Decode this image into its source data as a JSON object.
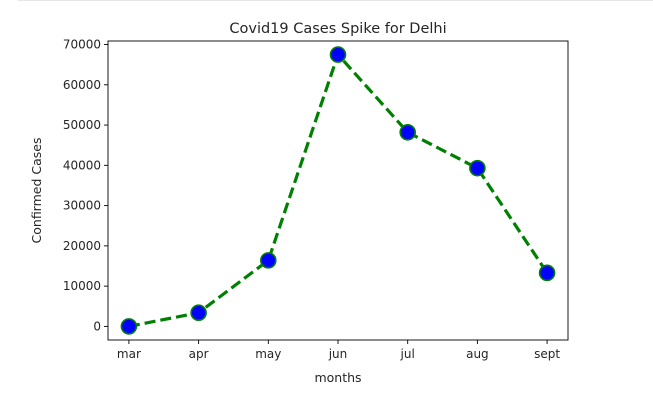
{
  "chart_data": {
    "type": "line",
    "title": "Covid19 Cases Spike for Delhi",
    "xlabel": "months",
    "ylabel": "Confirmed Cases",
    "categories": [
      "mar",
      "apr",
      "may",
      "jun",
      "jul",
      "aug",
      "sept"
    ],
    "series": [
      {
        "values": [
          0,
          3400,
          16400,
          67500,
          48200,
          39300,
          13300
        ]
      }
    ],
    "ylim": [
      -3375,
      70875
    ],
    "yticks": [
      0,
      10000,
      20000,
      30000,
      40000,
      50000,
      60000,
      70000
    ],
    "ytick_labels": [
      "0",
      "10000",
      "20000",
      "30000",
      "40000",
      "50000",
      "60000",
      "70000"
    ],
    "grid": false,
    "legend": "none",
    "line_style": "dashed",
    "colors": {
      "line": "#008000",
      "marker_fill": "#0000ff",
      "marker_edge": "#008000"
    }
  }
}
